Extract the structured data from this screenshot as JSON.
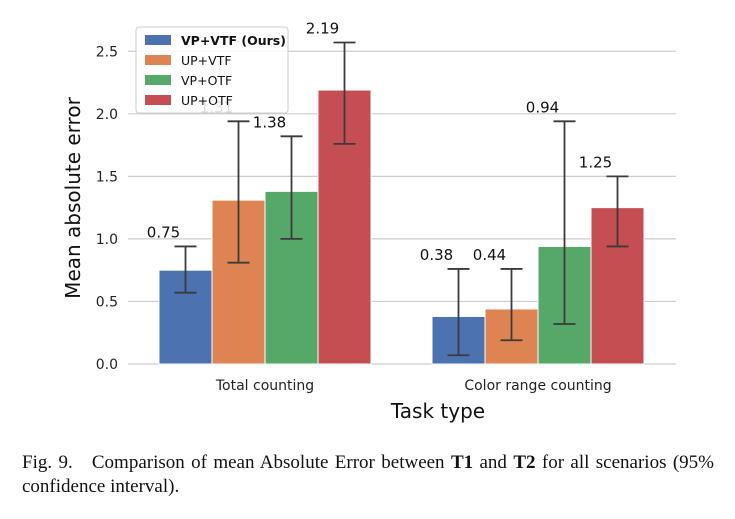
{
  "chart_data": {
    "type": "bar",
    "categories": [
      "Total counting",
      "Color range counting"
    ],
    "series": [
      {
        "name": "VP+VTF (Ours)",
        "color": "#4c72b0",
        "values": [
          0.75,
          0.38
        ],
        "ci": [
          [
            0.57,
            0.94
          ],
          [
            0.07,
            0.76
          ]
        ],
        "labels": [
          "0.75",
          "0.38"
        ]
      },
      {
        "name": "UP+VTF",
        "color": "#dd8452",
        "values": [
          1.31,
          0.44
        ],
        "ci": [
          [
            0.81,
            1.94
          ],
          [
            0.19,
            0.76
          ]
        ],
        "labels": [
          "1.31",
          "0.44"
        ]
      },
      {
        "name": "VP+OTF",
        "color": "#55a868",
        "values": [
          1.38,
          0.94
        ],
        "ci": [
          [
            1.0,
            1.82
          ],
          [
            0.32,
            1.94
          ]
        ],
        "labels": [
          "1.38",
          "0.94"
        ]
      },
      {
        "name": "UP+OTF",
        "color": "#c44e52",
        "values": [
          2.19,
          1.25
        ],
        "ci": [
          [
            1.76,
            2.57
          ],
          [
            0.94,
            1.5
          ]
        ],
        "labels": [
          "2.19",
          "1.25"
        ]
      }
    ],
    "xlabel": "Task type",
    "ylabel": "Mean absolute error",
    "ylim": [
      0,
      2.75
    ],
    "yticks": [
      0.0,
      0.5,
      1.0,
      1.5,
      2.0,
      2.5
    ],
    "ytick_labels": [
      "0.0",
      "0.5",
      "1.0",
      "1.5",
      "2.0",
      "2.5"
    ],
    "grid": "y",
    "legend_position": "top-left"
  },
  "caption": {
    "prefix": "Fig. 9.",
    "text_before": "Comparison of mean Absolute Error between ",
    "t1": "T1",
    "and": " and ",
    "t2": "T2",
    "text_after": " for all scenarios (95% confidence interval)."
  }
}
